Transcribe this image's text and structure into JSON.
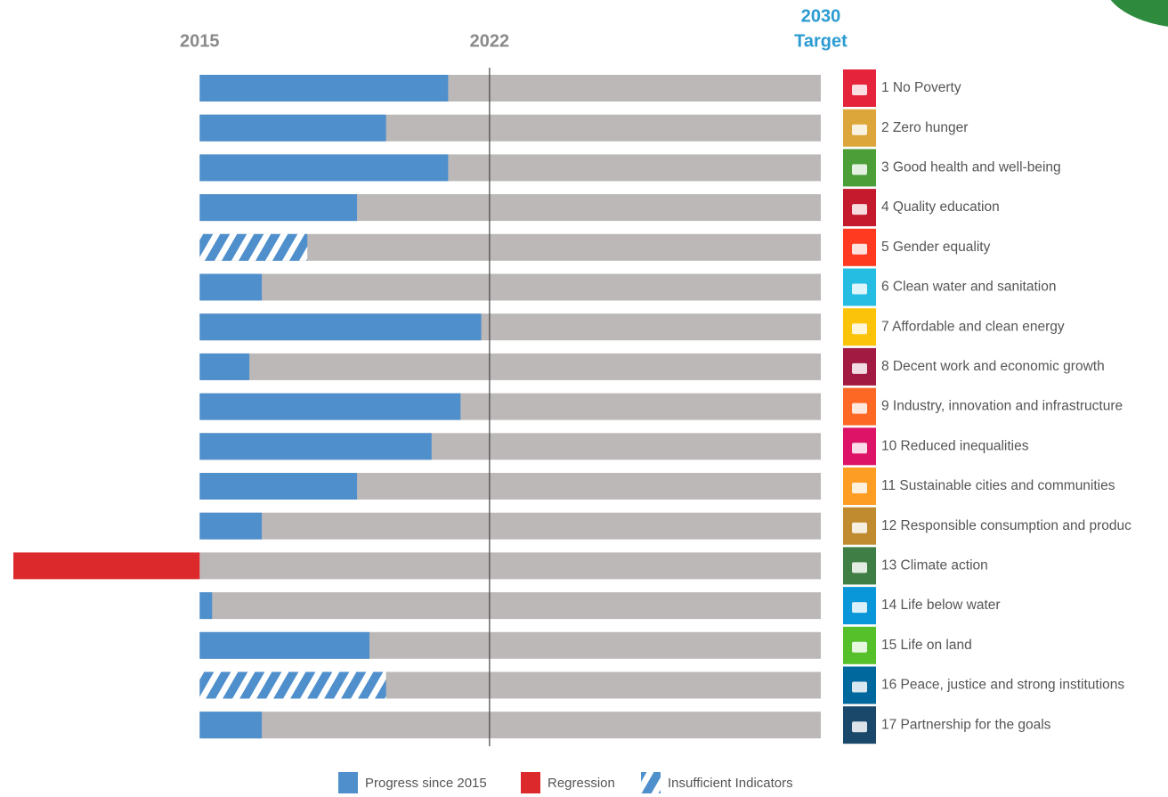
{
  "chart_data": {
    "type": "bar",
    "orientation": "horizontal",
    "categories": [
      "1 No Poverty",
      "2 Zero hunger",
      "3 Good health and well-being",
      "4 Quality education",
      "5 Gender equality",
      "6 Clean water and sanitation",
      "7 Affordable and clean energy",
      "8 Decent work and economic growth",
      "9 Industry, innovation and infrastructure",
      "10 Reduced inequalities",
      "11 Sustainable cities and communities",
      "12 Responsible consumption and produc",
      "13 Climate action",
      "14 Life below water",
      "15 Life on land",
      "16 Peace, justice and strong institutions",
      "17 Partnership for the goals"
    ],
    "category_colors": [
      "#e5243b",
      "#dda63a",
      "#4c9f38",
      "#c5192d",
      "#ff3a21",
      "#26bde2",
      "#fcc30b",
      "#a21942",
      "#fd6925",
      "#dd1367",
      "#fd9d24",
      "#bf8b2e",
      "#3f7e44",
      "#0a97d9",
      "#56c02b",
      "#00689d",
      "#19486a"
    ],
    "series": [
      {
        "name": "Progress since 2015",
        "color": "#4f8fcc",
        "pattern": "solid",
        "values": [
          2021,
          2019.5,
          2021,
          2018.8,
          null,
          2016.5,
          2021.8,
          2016.2,
          2021.3,
          2020.6,
          2018.8,
          2016.5,
          null,
          2015.3,
          2019.1,
          null,
          2016.5
        ]
      },
      {
        "name": "Regression",
        "color": "#dc2a2c",
        "pattern": "solid",
        "values": [
          null,
          null,
          null,
          null,
          null,
          null,
          null,
          null,
          null,
          null,
          null,
          null,
          2010.5,
          null,
          null,
          null,
          null
        ]
      },
      {
        "name": "Insufficient Indicators",
        "color": "#4f8fcc",
        "pattern": "hatched",
        "values": [
          null,
          null,
          null,
          null,
          2017.6,
          null,
          null,
          null,
          null,
          null,
          null,
          null,
          null,
          null,
          null,
          2019.5,
          null
        ]
      }
    ],
    "track_color": "#bcb8b8",
    "start": 2015,
    "xlim": [
      2010.5,
      2030
    ],
    "xticks": [
      2015,
      2022,
      2030
    ],
    "target_label": "Target",
    "reference_tick": 2022
  }
}
